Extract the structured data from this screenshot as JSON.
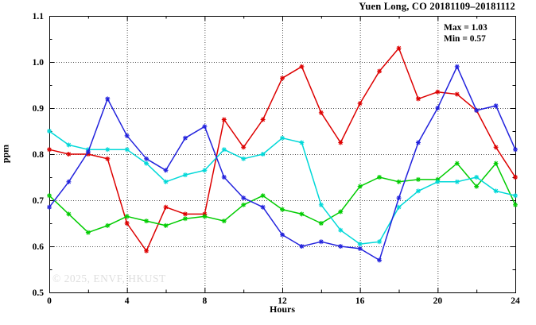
{
  "header": {
    "title": "Yuen Long, CO 20181109–20181112"
  },
  "annotation": {
    "max_label": "Max = 1.03",
    "min_label": "Min = 0.57"
  },
  "watermark": "© 2025, ENVF, HKUST",
  "chart_data": {
    "type": "line",
    "title": "Yuen Long, CO 20181109–20181112",
    "xlabel": "Hours",
    "ylabel": "ppm",
    "xlim": [
      0,
      24
    ],
    "ylim": [
      0.5,
      1.1
    ],
    "x_major_ticks": [
      0,
      4,
      8,
      12,
      16,
      20,
      24
    ],
    "x_minor_ticks": [
      2,
      6,
      10,
      14,
      18,
      22
    ],
    "y_major_ticks": [
      0.5,
      0.6,
      0.7,
      0.8,
      0.9,
      1.0,
      1.1
    ],
    "y_minor_ticks": [
      0.55,
      0.65,
      0.75,
      0.85,
      0.95,
      1.05
    ],
    "grid_x_values": [
      4,
      8,
      12,
      16,
      20
    ],
    "grid_y_values": [
      0.6,
      0.7,
      0.8,
      0.9,
      1.0
    ],
    "grid": "dotted",
    "legend": "none",
    "marker": "asterisk",
    "x": [
      0,
      1,
      2,
      3,
      4,
      5,
      6,
      7,
      8,
      9,
      10,
      11,
      12,
      13,
      14,
      15,
      16,
      17,
      18,
      19,
      20,
      21,
      22,
      23,
      24
    ],
    "series": [
      {
        "name": "red-series",
        "color": "#dd0000",
        "values": [
          0.81,
          0.8,
          0.8,
          0.79,
          0.65,
          0.59,
          0.685,
          0.67,
          0.67,
          0.875,
          0.815,
          0.875,
          0.965,
          0.99,
          0.89,
          0.825,
          0.91,
          0.98,
          1.03,
          0.92,
          0.935,
          0.93,
          0.895,
          0.815,
          0.75
        ]
      },
      {
        "name": "green-series",
        "color": "#00cc00",
        "values": [
          0.71,
          0.67,
          0.63,
          0.645,
          0.665,
          0.655,
          0.645,
          0.66,
          0.665,
          0.655,
          0.69,
          0.71,
          0.68,
          0.67,
          0.65,
          0.675,
          0.73,
          0.75,
          0.74,
          0.745,
          0.745,
          0.78,
          0.73,
          0.78,
          0.69
        ]
      },
      {
        "name": "cyan-series",
        "color": "#00d8d8",
        "values": [
          0.85,
          0.82,
          0.81,
          0.81,
          0.81,
          0.78,
          0.74,
          0.755,
          0.765,
          0.81,
          0.79,
          0.8,
          0.835,
          0.825,
          0.69,
          0.635,
          0.605,
          0.61,
          0.685,
          0.72,
          0.74,
          0.74,
          0.75,
          0.72,
          0.71
        ]
      },
      {
        "name": "blue-series",
        "color": "#2222dd",
        "values": [
          0.685,
          0.74,
          0.805,
          0.92,
          0.84,
          0.79,
          0.765,
          0.835,
          0.86,
          0.75,
          0.705,
          0.685,
          0.625,
          0.6,
          0.61,
          0.6,
          0.595,
          0.57,
          0.705,
          0.825,
          0.9,
          0.99,
          0.895,
          0.905,
          0.81
        ]
      }
    ],
    "stats": {
      "max": 1.03,
      "min": 0.57
    }
  }
}
